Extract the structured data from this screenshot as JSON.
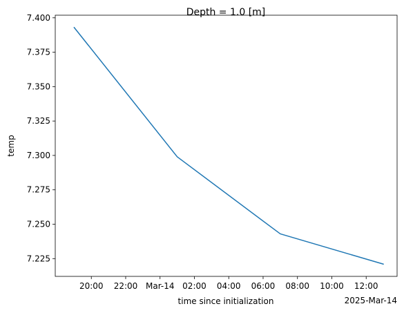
{
  "chart_data": {
    "type": "line",
    "title": "Depth = 1.0 [m]",
    "xlabel": "time since initialization",
    "ylabel": "temp",
    "x_offset_label": "2025-Mar-14",
    "xlim": [
      "2025-03-13T17:54",
      "2025-03-14T13:48"
    ],
    "ylim": [
      7.2121,
      7.4019
    ],
    "grid": false,
    "series": [
      {
        "color": "#1f77b4",
        "x": [
          "2025-03-13T19:00",
          "2025-03-14T01:00",
          "2025-03-14T07:00",
          "2025-03-14T13:00"
        ],
        "y": [
          7.393,
          7.299,
          7.243,
          7.221
        ]
      }
    ],
    "x_ticks": [
      {
        "t": "2025-03-13T20:00",
        "label": "20:00"
      },
      {
        "t": "2025-03-13T22:00",
        "label": "22:00"
      },
      {
        "t": "2025-03-14T00:00",
        "label": "Mar-14"
      },
      {
        "t": "2025-03-14T02:00",
        "label": "02:00"
      },
      {
        "t": "2025-03-14T04:00",
        "label": "04:00"
      },
      {
        "t": "2025-03-14T06:00",
        "label": "06:00"
      },
      {
        "t": "2025-03-14T08:00",
        "label": "08:00"
      },
      {
        "t": "2025-03-14T10:00",
        "label": "10:00"
      },
      {
        "t": "2025-03-14T12:00",
        "label": "12:00"
      }
    ],
    "y_ticks": [
      7.225,
      7.25,
      7.275,
      7.3,
      7.325,
      7.35,
      7.375,
      7.4
    ]
  }
}
